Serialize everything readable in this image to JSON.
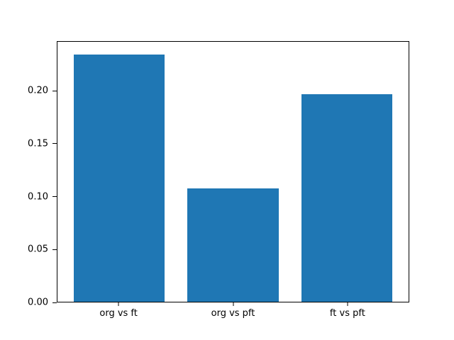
{
  "chart_data": {
    "type": "bar",
    "title": "",
    "xlabel": "",
    "ylabel": "",
    "categories": [
      "org vs ft",
      "org vs pft",
      "ft vs pft"
    ],
    "values": [
      0.235,
      0.108,
      0.197
    ],
    "ylim": [
      0,
      0.247
    ],
    "yticks": [
      0,
      0.05,
      0.1,
      0.15,
      0.2
    ],
    "ytick_labels": [
      "0.00",
      "0.05",
      "0.10",
      "0.15",
      "0.20"
    ],
    "bar_color": "#1f77b4",
    "grid": false,
    "legend_position": "none"
  },
  "colors": {
    "background": "#ffffff",
    "axis": "#000000",
    "bar": "#1f77b4"
  }
}
